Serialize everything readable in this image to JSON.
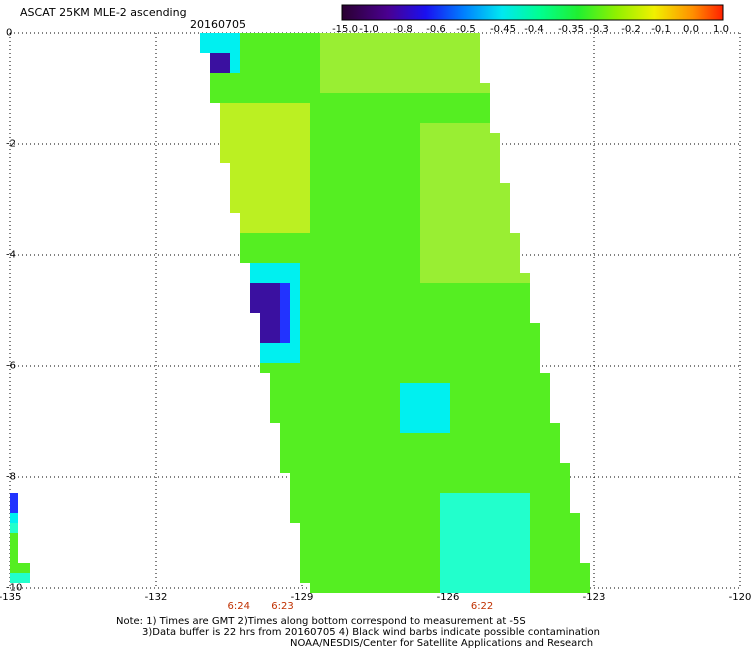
{
  "header": {
    "title": "ASCAT 25KM MLE-2 ascending",
    "date": "20160705"
  },
  "colorbar": {
    "labels": [
      "-15.0",
      "-1.0",
      "-0.8",
      "-0.6",
      "-0.5",
      "-0.45",
      "-0.4",
      "-0.35",
      "-0.3",
      "-0.2",
      "-0.1",
      "0.0",
      "1.0"
    ],
    "colors": [
      "#2a0030",
      "#4a0090",
      "#3000e0",
      "#0050ff",
      "#00a0ff",
      "#00f0f0",
      "#00ffa0",
      "#00f060",
      "#50f000",
      "#b0f000",
      "#ffe000",
      "#ff8000",
      "#ff2000"
    ]
  },
  "axes": {
    "x_ticks": [
      "-135",
      "-132",
      "-129",
      "-126",
      "-123",
      "-120"
    ],
    "y_ticks": [
      "0",
      "-2",
      "-4",
      "-6",
      "-8",
      "-10"
    ]
  },
  "times": [
    {
      "label": "6:24",
      "lon": -130.3
    },
    {
      "label": "6:23",
      "lon": -129.4
    },
    {
      "label": "6:22",
      "lon": -125.3
    }
  ],
  "notes": {
    "line1": "Note: 1) Times are GMT 2)Times along bottom correspond to measurement at -5S",
    "line2": "3)Data buffer is 22 hrs from 20160705 4) Black wind barbs indicate possible contamination",
    "line3": "NOAA/NESDIS/Center for Satellite Applications and Research"
  },
  "swath": {
    "colors": {
      "main": "#55ee22",
      "light": "#99ee33",
      "yellowgreen": "#bbf022",
      "cyan": "#22ffcc",
      "aqua": "#00f0f0",
      "blue": "#2233ff",
      "violet": "#3a10a0"
    }
  }
}
